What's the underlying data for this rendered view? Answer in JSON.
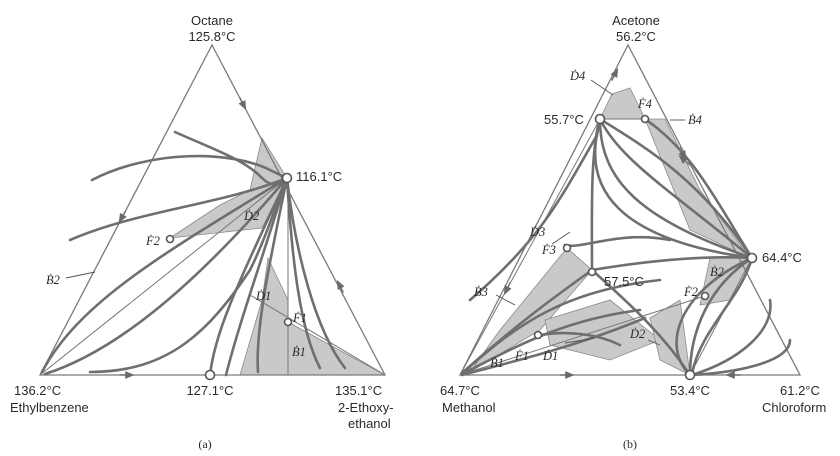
{
  "diagram_a": {
    "caption": "(a)",
    "top_vertex": {
      "name": "Octane",
      "temp": "125.8°C"
    },
    "left_vertex": {
      "temp": "136.2°C",
      "name": "Ethylbenzene"
    },
    "right_vertex": {
      "temp": "135.1°C",
      "name_line1": "2-Ethoxy-",
      "name_line2": "ethanol"
    },
    "azeotrope_right_edge": "116.1°C",
    "azeotrope_bottom_edge": "127.1°C",
    "points": {
      "D2": "Ḋ2",
      "F2": "Ḟ2",
      "B2": "Ḃ2",
      "D1": "Ḋ1",
      "F1": "Ḟ1",
      "B1": "Ḃ1"
    }
  },
  "diagram_b": {
    "caption": "(b)",
    "top_vertex": {
      "name": "Acetone",
      "temp": "56.2°C"
    },
    "left_vertex": {
      "temp": "64.7°C",
      "name": "Methanol"
    },
    "right_vertex": {
      "temp": "61.2°C",
      "name": "Chloroform"
    },
    "azeotrope_left_edge": "55.7°C",
    "azeotrope_right_edge": "64.4°C",
    "azeotrope_bottom_edge": "53.4°C",
    "azeotrope_ternary": "57.5°C",
    "points": {
      "D4": "Ḋ4",
      "F4": "Ḟ4",
      "B4": "Ḃ4",
      "D3": "Ḋ3",
      "F3": "Ḟ3",
      "B3": "Ḃ3",
      "B2": "Ḃ2",
      "F2": "Ḟ2",
      "D2": "Ḋ2",
      "F1": "Ḟ1",
      "D1": "Ḋ1",
      "B1": "Ḃ1"
    }
  }
}
